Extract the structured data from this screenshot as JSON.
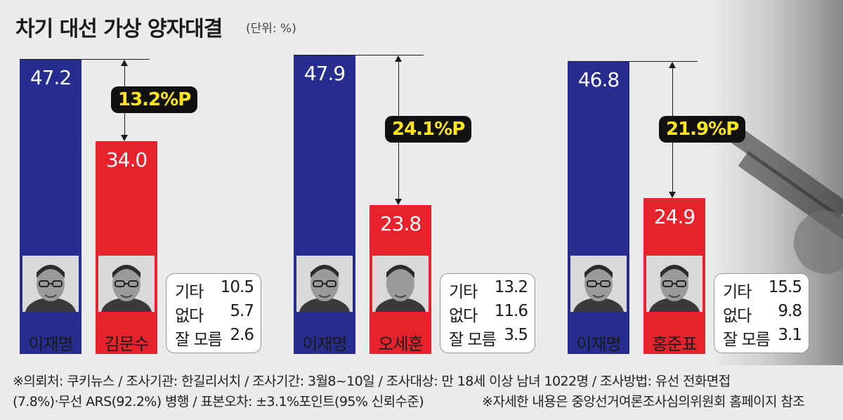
{
  "title": "차기 대선 가상 양자대결",
  "unit": "(단위: %)",
  "chart_data": [
    {
      "type": "bar",
      "categories": [
        "이재명",
        "김문수"
      ],
      "values": [
        47.2,
        34.0
      ],
      "labels": [
        "47.2",
        "34.0"
      ],
      "gap": "13.2%P",
      "colors": [
        "#262d8f",
        "#e8222c"
      ],
      "others": [
        {
          "label": "기타",
          "value": "10.5"
        },
        {
          "label": "없다",
          "value": "5.7"
        },
        {
          "label": "잘 모름",
          "value": "2.6"
        }
      ]
    },
    {
      "type": "bar",
      "categories": [
        "이재명",
        "오세훈"
      ],
      "values": [
        47.9,
        23.8
      ],
      "labels": [
        "47.9",
        "23.8"
      ],
      "gap": "24.1%P",
      "colors": [
        "#262d8f",
        "#e8222c"
      ],
      "others": [
        {
          "label": "기타",
          "value": "13.2"
        },
        {
          "label": "없다",
          "value": "11.6"
        },
        {
          "label": "잘 모름",
          "value": "3.5"
        }
      ]
    },
    {
      "type": "bar",
      "categories": [
        "이재명",
        "홍준표"
      ],
      "values": [
        46.8,
        24.9
      ],
      "labels": [
        "46.8",
        "24.9"
      ],
      "gap": "21.9%P",
      "colors": [
        "#262d8f",
        "#e8222c"
      ],
      "others": [
        {
          "label": "기타",
          "value": "15.5"
        },
        {
          "label": "없다",
          "value": "9.8"
        },
        {
          "label": "잘 모름",
          "value": "3.1"
        }
      ]
    }
  ],
  "footer": {
    "line1": "※의뢰처: 쿠키뉴스 / 조사기관: 한길리서치 / 조사기간: 3월8~10일 / 조사대상: 만 18세 이상 남녀 1022명 / 조사방법: 유선 전화면접",
    "line2": "(7.8%)·무선 ARS(92.2%) 병행 / 표본오차: ±3.1%포인트(95% 신뢰수준)",
    "note": "※자세한 내용은 중앙선거여론조사심의위원회 홈페이지 참조"
  }
}
